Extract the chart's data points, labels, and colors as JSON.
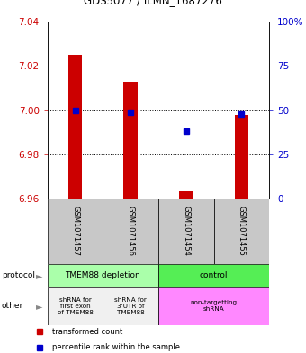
{
  "title": "GDS5077 / ILMN_1687276",
  "samples": [
    "GSM1071457",
    "GSM1071456",
    "GSM1071454",
    "GSM1071455"
  ],
  "bar_bottoms": [
    6.96,
    6.96,
    6.96,
    6.96
  ],
  "bar_tops": [
    7.025,
    7.013,
    6.963,
    6.998
  ],
  "percentile_values": [
    50,
    49,
    38,
    48
  ],
  "ylim_left": [
    6.96,
    7.04
  ],
  "ylim_right": [
    0,
    100
  ],
  "yticks_left": [
    6.96,
    6.98,
    7.0,
    7.02,
    7.04
  ],
  "yticks_right": [
    0,
    25,
    50,
    75,
    100
  ],
  "ytick_labels_right": [
    "0",
    "25",
    "50",
    "75",
    "100%"
  ],
  "bar_color": "#cc0000",
  "dot_color": "#0000cc",
  "bg_label": "#c8c8c8",
  "protocol_groups": [
    {
      "label": "TMEM88 depletion",
      "span": [
        0,
        2
      ],
      "color": "#aaffaa"
    },
    {
      "label": "control",
      "span": [
        2,
        4
      ],
      "color": "#55ee55"
    }
  ],
  "other_groups": [
    {
      "label": "shRNA for\nfirst exon\nof TMEM88",
      "span": [
        0,
        1
      ],
      "color": "#f0f0f0"
    },
    {
      "label": "shRNA for\n3'UTR of\nTMEM88",
      "span": [
        1,
        2
      ],
      "color": "#f0f0f0"
    },
    {
      "label": "non-targetting\nshRNA",
      "span": [
        2,
        4
      ],
      "color": "#ff88ff"
    }
  ],
  "legend_items": [
    {
      "color": "#cc0000",
      "label": "transformed count"
    },
    {
      "color": "#0000cc",
      "label": "percentile rank within the sample"
    }
  ],
  "left_label_color": "#cc0000",
  "right_label_color": "#0000cc",
  "n_samples": 4
}
